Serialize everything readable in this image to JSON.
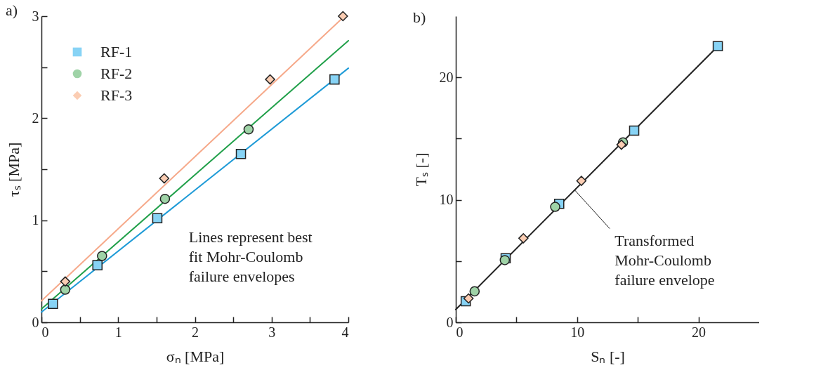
{
  "chart_data": [
    {
      "type": "scatter",
      "title": "a)",
      "xlabel": "σₙ [MPa]",
      "ylabel": "τₛ [MPa]",
      "xlim": [
        0,
        4
      ],
      "ylim": [
        0,
        3
      ],
      "xticks": [
        0,
        {
          "value": 0.5,
          "label": null
        },
        1,
        {
          "value": 1.5,
          "label": null
        },
        2,
        {
          "value": 2.5,
          "label": null
        },
        3,
        {
          "value": 3.5,
          "label": null
        },
        4
      ],
      "yticks": [
        0,
        {
          "value": 0.5,
          "label": null
        },
        1,
        {
          "value": 1.5,
          "label": null
        },
        2,
        {
          "value": 2.5,
          "label": null
        },
        3
      ],
      "grid": false,
      "legend": "top left",
      "series": [
        {
          "name": "RF-1",
          "type": "scatter",
          "marker": "square",
          "color": "#87d3f5",
          "x": [
            0.15,
            0.73,
            1.51,
            2.6,
            3.82
          ],
          "values": [
            0.18,
            0.56,
            1.02,
            1.65,
            2.38
          ]
        },
        {
          "name": "RF-2",
          "type": "scatter",
          "marker": "circle",
          "color": "#9fd3a7",
          "x": [
            0.31,
            0.79,
            1.61,
            2.7
          ],
          "values": [
            0.32,
            0.65,
            1.21,
            1.89
          ]
        },
        {
          "name": "RF-3",
          "type": "scatter",
          "marker": "diamond",
          "color": "#fbcdb3",
          "x": [
            0.31,
            1.6,
            2.98,
            3.93
          ],
          "values": [
            0.4,
            1.41,
            2.38,
            3.0
          ]
        },
        {
          "type": "line",
          "color": "#1f9bd7",
          "x": [
            0,
            4
          ],
          "values": [
            0.1,
            2.49
          ]
        },
        {
          "type": "line",
          "color": "#21a04a",
          "x": [
            0,
            4
          ],
          "values": [
            0.13,
            2.76
          ]
        },
        {
          "type": "line",
          "color": "#f6a98a",
          "x": [
            0,
            3.95
          ],
          "values": [
            0.21,
            3.0
          ]
        }
      ],
      "annotations": [
        "Lines represent best fit Mohr-Coulomb failure envelopes"
      ]
    },
    {
      "type": "scatter",
      "title": "b)",
      "xlabel": "Sₙ [-]",
      "ylabel": "Tₛ [-]",
      "xlim": [
        0,
        25
      ],
      "ylim": [
        0,
        25
      ],
      "xticks": [
        0,
        {
          "value": 5,
          "label": null
        },
        10,
        {
          "value": 15,
          "label": null
        },
        20
      ],
      "yticks": [
        0,
        {
          "value": 5,
          "label": null
        },
        10,
        {
          "value": 15,
          "label": null
        },
        20
      ],
      "grid": false,
      "legend": "top left",
      "series": [
        {
          "name": "RF-1",
          "type": "scatter",
          "marker": "square",
          "color": "#87d3f5",
          "x": [
            0.82,
            4.11,
            8.52,
            14.7,
            21.59
          ],
          "values": [
            1.72,
            5.23,
            9.67,
            15.65,
            22.55
          ]
        },
        {
          "name": "RF-2",
          "type": "scatter",
          "marker": "circle",
          "color": "#9fd3a7",
          "x": [
            1.55,
            4.04,
            8.19,
            13.78
          ],
          "values": [
            2.53,
            5.08,
            9.43,
            14.69
          ]
        },
        {
          "name": "RF-3",
          "type": "scatter",
          "marker": "diamond",
          "color": "#fbcdb3",
          "x": [
            1.05,
            5.57,
            10.35,
            13.65
          ],
          "values": [
            1.95,
            6.86,
            11.55,
            14.5
          ]
        },
        {
          "type": "line",
          "color": "#222222",
          "x": [
            0,
            21.6
          ],
          "values": [
            1.05,
            22.55
          ]
        }
      ],
      "annotations": [
        {
          "text": "Transformed Mohr-Coulomb failure envelope",
          "x": 9.8,
          "y": 10.8
        }
      ]
    }
  ]
}
